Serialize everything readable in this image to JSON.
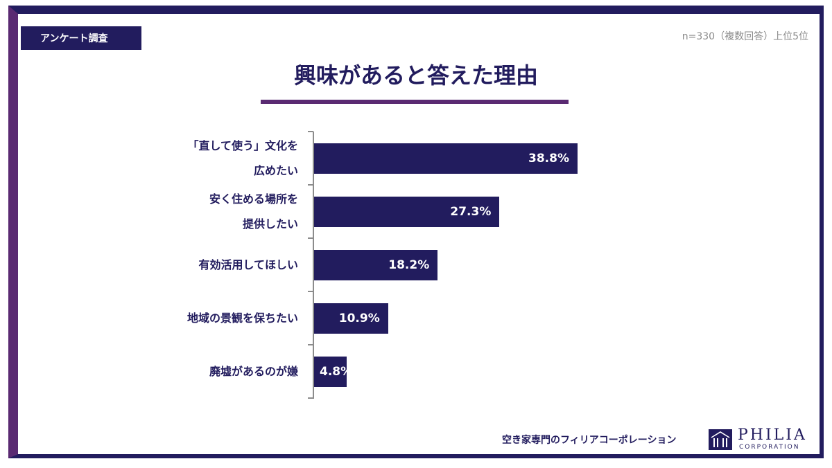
{
  "header": {
    "tag_label": "アンケート調査",
    "sample_note": "n=330（複数回答）上位5位"
  },
  "chart_data": {
    "type": "bar",
    "orientation": "horizontal",
    "title": "興味があると答えた理由",
    "categories": [
      [
        "「直して使う」文化を",
        "広めたい"
      ],
      [
        "安く住める場所を",
        "提供したい"
      ],
      [
        "有効活用してほしい"
      ],
      [
        "地域の景観を保ちたい"
      ],
      [
        "廃墟があるのが嫌"
      ]
    ],
    "values": [
      38.8,
      27.3,
      18.2,
      10.9,
      4.8
    ],
    "value_labels": [
      "38.8%",
      "27.3%",
      "18.2%",
      "10.9%",
      "4.8%"
    ],
    "xlim": [
      0,
      40
    ],
    "grid": false,
    "bar_color": "#221c5e"
  },
  "footer": {
    "company_text": "空き家専門のフィリアコーポレーション",
    "logo_name": "PHILIA",
    "logo_sub": "CORPORATION"
  }
}
